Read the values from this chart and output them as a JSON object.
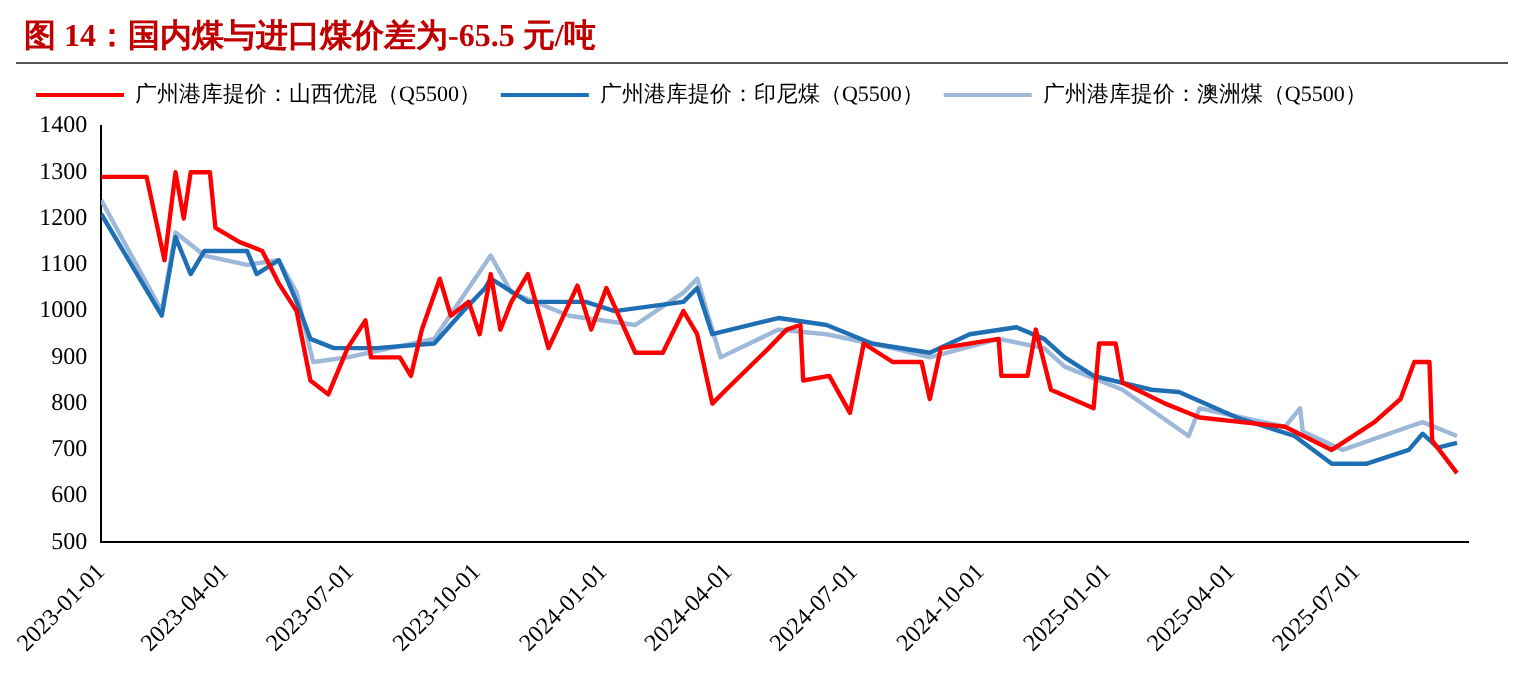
{
  "chart_data": {
    "type": "line",
    "title": "图 14：国内煤与进口煤价差为-65.5 元/吨",
    "ylim": [
      500,
      1400
    ],
    "yticks": [
      500,
      600,
      700,
      800,
      900,
      1000,
      1100,
      1200,
      1300,
      1400
    ],
    "xlim": [
      "2023-01-01",
      "2025-09-20"
    ],
    "xticks": [
      "2023-01-01",
      "2023-04-01",
      "2023-07-01",
      "2023-10-01",
      "2024-01-01",
      "2024-04-01",
      "2024-07-01",
      "2024-10-01",
      "2025-01-01",
      "2025-04-01",
      "2025-07-01"
    ],
    "grid": false,
    "legend": "top",
    "marker": "none",
    "line_style": "solid",
    "series": [
      {
        "name": "广州港库提价：山西优混（Q5500）",
        "color": "#ff0000",
        "x": [
          "2023-01-01",
          "2023-02-03",
          "2023-02-16",
          "2023-02-24",
          "2023-03-02",
          "2023-03-07",
          "2023-03-21",
          "2023-03-25",
          "2023-04-11",
          "2023-04-28",
          "2023-05-10",
          "2023-05-23",
          "2023-06-02",
          "2023-06-15",
          "2023-06-29",
          "2023-07-12",
          "2023-07-16",
          "2023-08-06",
          "2023-08-14",
          "2023-08-22",
          "2023-09-04",
          "2023-09-12",
          "2023-09-25",
          "2023-10-03",
          "2023-10-11",
          "2023-10-18",
          "2023-10-26",
          "2023-11-07",
          "2023-11-22",
          "2023-12-13",
          "2023-12-23",
          "2024-01-03",
          "2024-01-24",
          "2024-02-13",
          "2024-02-28",
          "2024-03-09",
          "2024-03-20",
          "2024-03-30",
          "2024-04-30",
          "2024-05-13",
          "2024-05-23",
          "2024-05-25",
          "2024-06-13",
          "2024-06-28",
          "2024-07-08",
          "2024-07-29",
          "2024-08-19",
          "2024-08-25",
          "2024-09-02",
          "2024-10-14",
          "2024-10-16",
          "2024-11-04",
          "2024-11-10",
          "2024-11-21",
          "2024-12-22",
          "2024-12-26",
          "2025-01-07",
          "2025-01-12",
          "2025-02-12",
          "2025-03-09",
          "2025-05-10",
          "2025-06-13",
          "2025-07-14",
          "2025-08-02",
          "2025-08-12",
          "2025-08-23",
          "2025-08-25",
          "2025-09-12"
        ],
        "values": [
          1290,
          1290,
          1110,
          1300,
          1200,
          1300,
          1300,
          1180,
          1150,
          1130,
          1060,
          1000,
          850,
          820,
          920,
          980,
          900,
          900,
          860,
          960,
          1070,
          990,
          1020,
          950,
          1080,
          960,
          1020,
          1080,
          920,
          1055,
          960,
          1050,
          910,
          910,
          1000,
          950,
          800,
          830,
          920,
          960,
          970,
          850,
          860,
          780,
          930,
          890,
          890,
          810,
          920,
          940,
          860,
          860,
          960,
          830,
          790,
          930,
          930,
          845,
          800,
          770,
          750,
          700,
          760,
          810,
          890,
          890,
          720,
          650
        ]
      },
      {
        "name": "广州港库提价：印尼煤（Q5500）",
        "color": "#1f6fb5",
        "x": [
          "2023-01-01",
          "2023-02-14",
          "2023-02-24",
          "2023-03-07",
          "2023-03-17",
          "2023-04-17",
          "2023-04-24",
          "2023-05-10",
          "2023-05-23",
          "2023-06-02",
          "2023-06-19",
          "2023-07-20",
          "2023-08-31",
          "2023-09-21",
          "2023-10-07",
          "2023-10-11",
          "2023-11-07",
          "2023-12-19",
          "2024-01-09",
          "2024-02-28",
          "2024-03-09",
          "2024-03-20",
          "2024-05-07",
          "2024-06-11",
          "2024-07-14",
          "2024-08-25",
          "2024-09-23",
          "2024-10-27",
          "2024-11-16",
          "2024-12-01",
          "2024-12-22",
          "2025-02-02",
          "2025-02-22",
          "2025-04-05",
          "2025-05-17",
          "2025-06-13",
          "2025-07-08",
          "2025-08-08",
          "2025-08-18",
          "2025-08-29",
          "2025-09-12"
        ],
        "values": [
          1210,
          990,
          1160,
          1080,
          1130,
          1130,
          1080,
          1110,
          1020,
          940,
          920,
          920,
          930,
          1000,
          1050,
          1070,
          1020,
          1020,
          1000,
          1020,
          1050,
          950,
          985,
          970,
          930,
          910,
          950,
          965,
          940,
          900,
          860,
          830,
          825,
          770,
          730,
          670,
          670,
          700,
          735,
          705,
          715
        ]
      },
      {
        "name": "广州港库提价：澳洲煤（Q5500）",
        "color": "#9db8d9",
        "x": [
          "2023-01-01",
          "2023-02-14",
          "2023-02-24",
          "2023-03-17",
          "2023-04-17",
          "2023-05-10",
          "2023-05-23",
          "2023-06-04",
          "2023-06-29",
          "2023-07-30",
          "2023-08-31",
          "2023-10-11",
          "2023-10-26",
          "2023-12-07",
          "2024-01-24",
          "2024-02-28",
          "2024-03-09",
          "2024-03-26",
          "2024-05-07",
          "2024-06-11",
          "2024-07-29",
          "2024-08-25",
          "2024-10-14",
          "2024-11-16",
          "2024-12-01",
          "2025-01-12",
          "2025-03-01",
          "2025-03-09",
          "2025-05-10",
          "2025-05-21",
          "2025-05-23",
          "2025-06-21",
          "2025-08-08",
          "2025-08-18",
          "2025-09-12"
        ],
        "values": [
          1240,
          1000,
          1170,
          1120,
          1100,
          1110,
          1040,
          890,
          900,
          920,
          940,
          1120,
          1040,
          990,
          970,
          1040,
          1070,
          900,
          960,
          950,
          920,
          900,
          940,
          920,
          880,
          830,
          730,
          790,
          750,
          790,
          740,
          700,
          750,
          760,
          730
        ]
      }
    ]
  }
}
